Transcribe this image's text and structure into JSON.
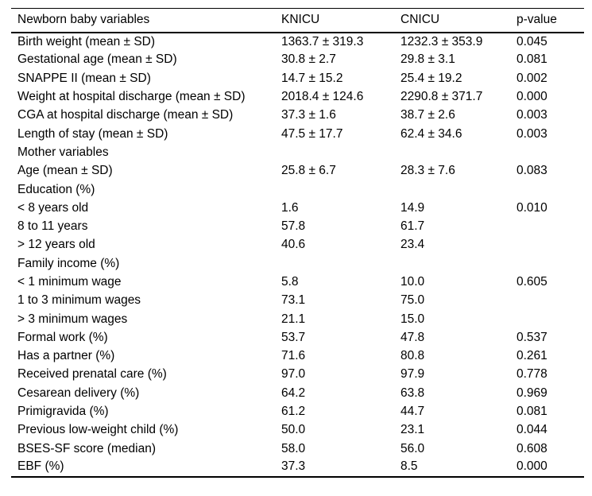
{
  "table": {
    "background": "#ffffff",
    "text_color": "#000000",
    "border_color": "#000000",
    "columns": [
      "Newborn baby variables",
      "KNICU",
      "CNICU",
      "p-value"
    ],
    "rows": [
      {
        "label": "Birth weight (mean ± SD)",
        "knicu": "1363.7 ± 319.3",
        "cnicu": "1232.3 ± 353.9",
        "p_value": "0.045"
      },
      {
        "label": "Gestational age (mean ± SD)",
        "knicu": "30.8 ± 2.7",
        "cnicu": "29.8 ± 3.1",
        "p_value": "0.081"
      },
      {
        "label": "SNAPPE II (mean ± SD)",
        "knicu": "14.7 ± 15.2",
        "cnicu": "25.4 ± 19.2",
        "p_value": "0.002"
      },
      {
        "label": "Weight at hospital discharge (mean ± SD)",
        "knicu": "2018.4 ± 124.6",
        "cnicu": "2290.8 ± 371.7",
        "p_value": "0.000"
      },
      {
        "label": "CGA at hospital discharge (mean ± SD)",
        "knicu": "37.3 ± 1.6",
        "cnicu": "38.7 ± 2.6",
        "p_value": "0.003"
      },
      {
        "label": "Length of stay (mean ± SD)",
        "knicu": "47.5 ± 17.7",
        "cnicu": "62.4 ± 34.6",
        "p_value": "0.003"
      },
      {
        "label": "Mother variables",
        "knicu": "",
        "cnicu": "",
        "p_value": ""
      },
      {
        "label": "Age (mean ± SD)",
        "knicu": "25.8 ± 6.7",
        "cnicu": "28.3 ± 7.6",
        "p_value": "0.083"
      },
      {
        "label": "Education (%)",
        "knicu": "",
        "cnicu": "",
        "p_value": ""
      },
      {
        "label": "< 8 years old",
        "knicu": "1.6",
        "cnicu": "14.9",
        "p_value": "0.010"
      },
      {
        "label": "8 to 11 years",
        "knicu": "57.8",
        "cnicu": "61.7",
        "p_value": ""
      },
      {
        "label": "> 12 years old",
        "knicu": "40.6",
        "cnicu": "23.4",
        "p_value": ""
      },
      {
        "label": "Family income (%)",
        "knicu": "",
        "cnicu": "",
        "p_value": ""
      },
      {
        "label": "< 1 minimum wage",
        "knicu": "5.8",
        "cnicu": "10.0",
        "p_value": "0.605"
      },
      {
        "label": "1 to 3 minimum wages",
        "knicu": "73.1",
        "cnicu": "75.0",
        "p_value": ""
      },
      {
        "label": "> 3 minimum wages",
        "knicu": "21.1",
        "cnicu": "15.0",
        "p_value": ""
      },
      {
        "label": "Formal work (%)",
        "knicu": "53.7",
        "cnicu": "47.8",
        "p_value": "0.537"
      },
      {
        "label": "Has a partner (%)",
        "knicu": "71.6",
        "cnicu": "80.8",
        "p_value": "0.261"
      },
      {
        "label": "Received prenatal care (%)",
        "knicu": "97.0",
        "cnicu": "97.9",
        "p_value": "0.778"
      },
      {
        "label": "Cesarean delivery (%)",
        "knicu": "64.2",
        "cnicu": "63.8",
        "p_value": "0.969"
      },
      {
        "label": "Primigravida (%)",
        "knicu": "61.2",
        "cnicu": "44.7",
        "p_value": "0.081"
      },
      {
        "label": "Previous low-weight child (%)",
        "knicu": "50.0",
        "cnicu": "23.1",
        "p_value": "0.044"
      },
      {
        "label": "BSES-SF score (median)",
        "knicu": "58.0",
        "cnicu": "56.0",
        "p_value": "0.608"
      },
      {
        "label": "EBF (%)",
        "knicu": "37.3",
        "cnicu": "8.5",
        "p_value": "0.000"
      }
    ]
  }
}
